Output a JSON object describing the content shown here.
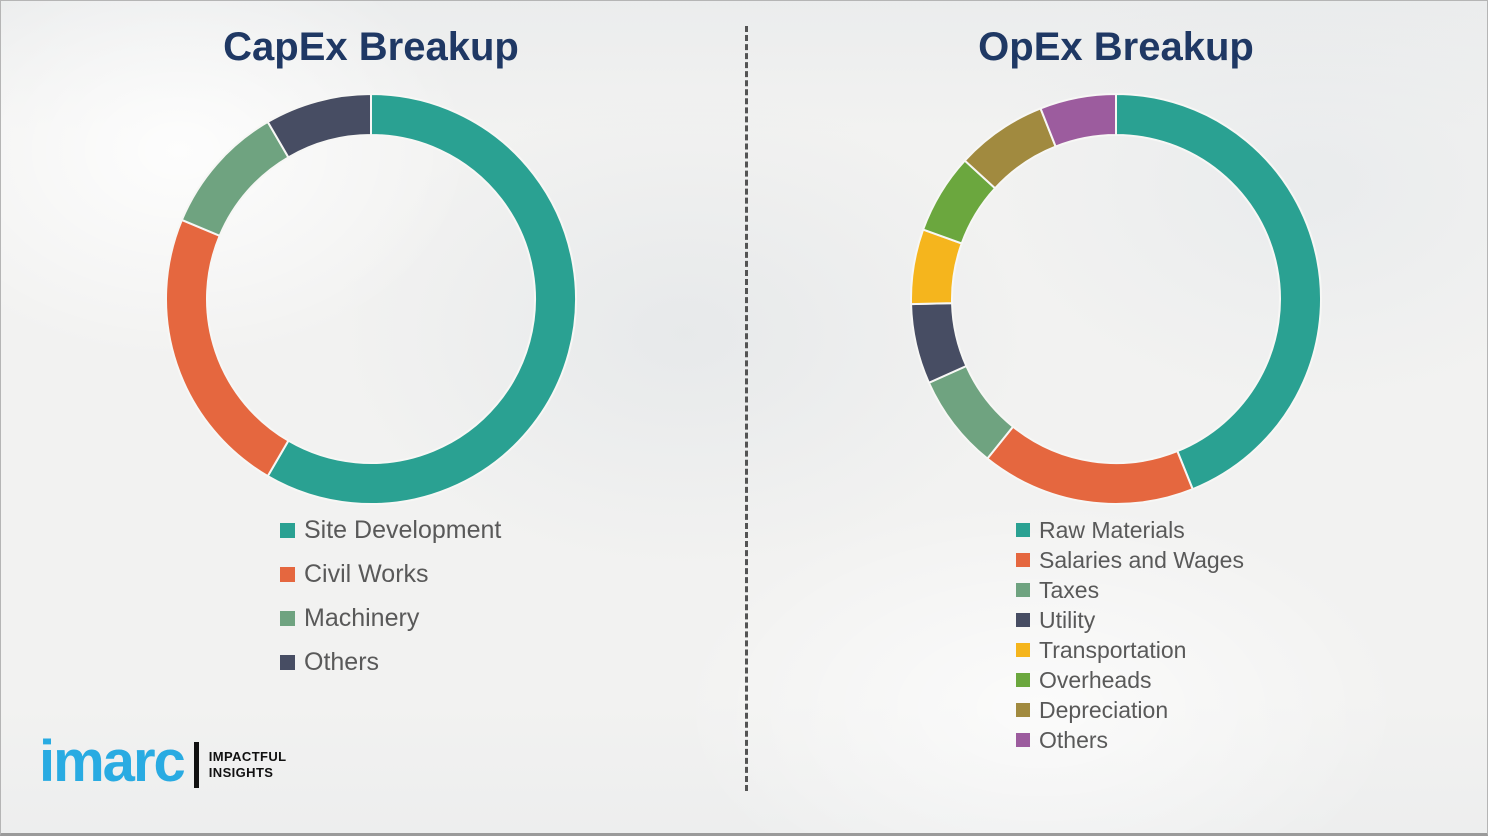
{
  "chart_data": [
    {
      "type": "pie",
      "variant": "donut",
      "title": "CapEx Breakup",
      "labels": [
        "Site Development",
        "Civil Works",
        "Machinery",
        "Others"
      ],
      "values": [
        58.4,
        22.9,
        10.3,
        8.4
      ],
      "colors": [
        "#2aa192",
        "#e5673f",
        "#6fa380",
        "#474d63"
      ],
      "units": "percent",
      "legend_position": "below-left",
      "start_angle_deg": 0,
      "direction": "clockwise"
    },
    {
      "type": "pie",
      "variant": "donut",
      "title": "OpEx Breakup",
      "labels": [
        "Raw Materials",
        "Salaries and Wages",
        "Taxes",
        "Utility",
        "Transportation",
        "Overheads",
        "Depreciation",
        "Others"
      ],
      "values": [
        43.9,
        16.9,
        7.5,
        6.3,
        5.9,
        6.3,
        7.2,
        6.0
      ],
      "colors": [
        "#2aa192",
        "#e5673f",
        "#6fa380",
        "#474d63",
        "#f5b51d",
        "#6ba73e",
        "#a18a3f",
        "#9c5c9e"
      ],
      "units": "percent",
      "legend_position": "below-left",
      "start_angle_deg": 0,
      "direction": "clockwise"
    }
  ],
  "branding": {
    "logo_text": "imarc",
    "tagline_line1": "IMPACTFUL",
    "tagline_line2": "INSIGHTS",
    "logo_color": "#29abe2"
  },
  "style": {
    "title_color": "#1f3864",
    "legend_text_color": "#595959",
    "background_color": "#f2f2f1",
    "divider_color": "#545454"
  }
}
